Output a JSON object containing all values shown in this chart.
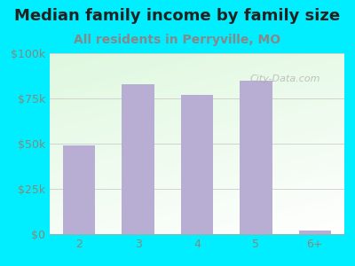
{
  "title": "Median family income by family size",
  "subtitle": "All residents in Perryville, MO",
  "categories": [
    "2",
    "3",
    "4",
    "5",
    "6+"
  ],
  "values": [
    49000,
    83000,
    77000,
    85000,
    2000
  ],
  "bar_color": "#b8aed4",
  "bar_width": 0.55,
  "ylim": [
    0,
    100000
  ],
  "yticks": [
    0,
    25000,
    50000,
    75000,
    100000
  ],
  "ytick_labels": [
    "$0",
    "$25k",
    "$50k",
    "$75k",
    "$100k"
  ],
  "title_fontsize": 13,
  "subtitle_fontsize": 10,
  "tick_fontsize": 9,
  "title_color": "#222222",
  "subtitle_color": "#888888",
  "tick_color": "#888877",
  "background_outer": "#00eeff",
  "grid_color": "#cccccc",
  "watermark": "City-Data.com"
}
